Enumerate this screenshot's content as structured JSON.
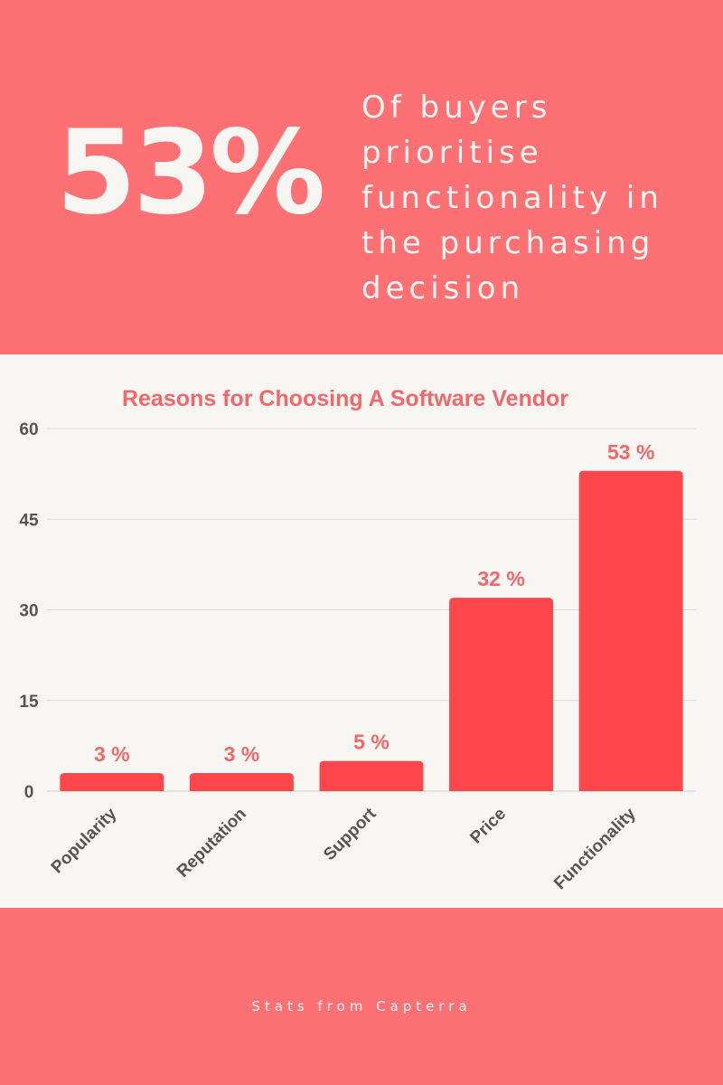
{
  "hero": {
    "stat": "53%",
    "lines": [
      "Of buyers",
      "prioritise",
      "functionality in",
      "the purchasing",
      "decision"
    ]
  },
  "footer": {
    "source": "Stats from Capterra"
  },
  "colors": {
    "accent": "#fd7073",
    "bar": "#fd474c",
    "label": "#f2676a",
    "text": "#555555",
    "background": "#f7f6f3"
  },
  "chart_data": {
    "type": "bar",
    "title": "Reasons for Choosing A Software Vendor",
    "xlabel": "",
    "ylabel": "",
    "categories": [
      "Popularity",
      "Reputation",
      "Support",
      "Price",
      "Functionality"
    ],
    "values": [
      3,
      3,
      5,
      32,
      53
    ],
    "data_labels": [
      "3 %",
      "3 %",
      "5 %",
      "32 %",
      "53 %"
    ],
    "ylim": [
      0,
      60
    ],
    "yticks": [
      0,
      15,
      30,
      45,
      60
    ],
    "grid": true,
    "legend": "none"
  }
}
